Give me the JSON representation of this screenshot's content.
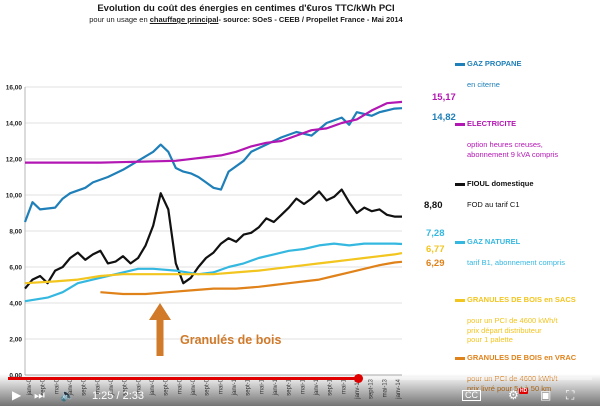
{
  "chart_data": {
    "type": "line",
    "title": "Evolution du coût des énergies en centimes d'€uros TTC/kWh PCI",
    "subtitle_parts": [
      "pour un usage en ",
      "chauffage principal",
      "- source: SOeS - CEEB / Propellet France - Mai 2014"
    ],
    "ylim": [
      0,
      16
    ],
    "y_ticks": [
      "0,00",
      "2,00",
      "4,00",
      "6,00",
      "8,00",
      "10,00",
      "12,00",
      "14,00",
      "16,00"
    ],
    "x_tick_labels": [
      "janv-0",
      "sept-0",
      "mai-0",
      "janv-0",
      "sept-0",
      "mai-0",
      "janv-0",
      "sept-0",
      "mai-0",
      "janv-0",
      "sept-0",
      "mai-0",
      "janv-0",
      "sept-0",
      "mai-0",
      "janv-1",
      "sept-1",
      "mai-1",
      "janv-1",
      "sept-1",
      "mai-1",
      "janv-1",
      "sept-1",
      "mai-1",
      "janv-13",
      "sept-13",
      "mai-13",
      "janv-14"
    ],
    "x_range": [
      0,
      100
    ],
    "grid": true,
    "series": [
      {
        "name": "GAZ PROPANE",
        "color": "#1f7fb8",
        "x": [
          0,
          2,
          4,
          8,
          10,
          12,
          16,
          18,
          22,
          26,
          30,
          34,
          36,
          38,
          40,
          42,
          44,
          46,
          48,
          50,
          52,
          54,
          58,
          60,
          64,
          68,
          72,
          76,
          80,
          84,
          86,
          88,
          90,
          92,
          94,
          96,
          98,
          100
        ],
        "y": [
          8.5,
          9.6,
          9.2,
          9.3,
          9.8,
          10.1,
          10.4,
          10.7,
          11.0,
          11.4,
          11.9,
          12.4,
          12.8,
          12.4,
          11.5,
          11.3,
          11.2,
          11.0,
          10.7,
          10.4,
          10.3,
          11.3,
          11.9,
          12.4,
          12.8,
          13.2,
          13.5,
          13.3,
          14.0,
          14.3,
          13.9,
          14.6,
          14.5,
          14.4,
          14.6,
          14.7,
          14.8,
          14.82
        ]
      },
      {
        "name": "ELECTRICITE",
        "color": "#b317b3",
        "x": [
          0,
          20,
          40,
          52,
          56,
          60,
          64,
          68,
          72,
          76,
          80,
          84,
          88,
          92,
          96,
          100
        ],
        "y": [
          11.8,
          11.8,
          11.9,
          12.2,
          12.4,
          12.7,
          12.9,
          13.0,
          13.3,
          13.6,
          13.7,
          14.0,
          14.2,
          14.7,
          15.1,
          15.17
        ]
      },
      {
        "name": "FIOUL domestique",
        "color": "#111111",
        "x": [
          0,
          2,
          4,
          6,
          8,
          10,
          12,
          14,
          16,
          18,
          20,
          22,
          24,
          26,
          28,
          30,
          32,
          34,
          36,
          38,
          40,
          42,
          44,
          46,
          48,
          50,
          52,
          54,
          56,
          58,
          60,
          62,
          64,
          66,
          68,
          70,
          72,
          74,
          76,
          78,
          80,
          82,
          84,
          86,
          88,
          90,
          92,
          94,
          96,
          98,
          100
        ],
        "y": [
          4.8,
          5.3,
          5.5,
          5.1,
          5.8,
          6.0,
          6.5,
          6.8,
          6.4,
          6.7,
          6.9,
          6.2,
          6.3,
          6.6,
          6.2,
          6.5,
          7.2,
          8.3,
          10.1,
          9.2,
          6.2,
          5.1,
          5.4,
          6.0,
          6.5,
          6.8,
          7.3,
          7.6,
          7.4,
          7.8,
          7.9,
          8.2,
          8.7,
          8.5,
          8.9,
          9.3,
          9.8,
          9.5,
          9.8,
          10.2,
          9.7,
          9.9,
          10.3,
          9.6,
          9.0,
          9.3,
          9.1,
          9.2,
          8.9,
          8.8,
          8.8
        ]
      },
      {
        "name": "GAZ NATUREL",
        "color": "#35b8e0",
        "x": [
          0,
          6,
          10,
          14,
          18,
          22,
          26,
          30,
          34,
          40,
          46,
          50,
          54,
          58,
          62,
          66,
          70,
          74,
          78,
          82,
          86,
          90,
          94,
          98,
          100
        ],
        "y": [
          4.1,
          4.3,
          4.6,
          5.1,
          5.3,
          5.5,
          5.7,
          5.9,
          5.9,
          5.8,
          5.6,
          5.7,
          6.0,
          6.2,
          6.5,
          6.7,
          6.9,
          7.0,
          7.2,
          7.3,
          7.2,
          7.3,
          7.3,
          7.3,
          7.28
        ]
      },
      {
        "name": "GRANULES DE BOIS en SACS",
        "color": "#f2c51f",
        "x": [
          0,
          8,
          14,
          20,
          26,
          32,
          38,
          44,
          50,
          56,
          62,
          66,
          70,
          74,
          78,
          82,
          86,
          90,
          94,
          98,
          100
        ],
        "y": [
          5.1,
          5.2,
          5.3,
          5.5,
          5.6,
          5.6,
          5.6,
          5.6,
          5.6,
          5.7,
          5.8,
          5.9,
          6.0,
          6.1,
          6.2,
          6.3,
          6.4,
          6.5,
          6.6,
          6.7,
          6.77
        ]
      },
      {
        "name": "GRANULES DE BOIS en VRAC",
        "color": "#e0821a",
        "x": [
          20,
          26,
          32,
          38,
          44,
          50,
          56,
          62,
          66,
          70,
          74,
          78,
          82,
          86,
          90,
          94,
          98,
          100
        ],
        "y": [
          4.6,
          4.5,
          4.5,
          4.6,
          4.7,
          4.8,
          4.8,
          4.9,
          5.0,
          5.1,
          5.2,
          5.3,
          5.5,
          5.7,
          5.9,
          6.1,
          6.25,
          6.29
        ]
      }
    ],
    "end_values": [
      {
        "label": "15,17",
        "color": "#b317b3"
      },
      {
        "label": "14,82",
        "color": "#1f7fb8"
      },
      {
        "label": "8,80",
        "color": "#111111"
      },
      {
        "label": "7,28",
        "color": "#35b8e0"
      },
      {
        "label": "6,77",
        "color": "#f2c51f"
      },
      {
        "label": "6,29",
        "color": "#e0821a"
      }
    ],
    "legend": [
      {
        "name": "GAZ PROPANE",
        "color": "#1f7fb8",
        "sub": [
          "en citerne"
        ]
      },
      {
        "name": "ELECTRICITE",
        "color": "#b317b3",
        "sub": [
          "option heures creuses,",
          "abonnement 9 kVA compris"
        ]
      },
      {
        "name": "FIOUL domestique",
        "color": "#111111",
        "sub": [
          "FOD au tarif C1"
        ]
      },
      {
        "name": "GAZ NATUREL",
        "color": "#35b8e0",
        "sub": [
          "tarif B1, abonnement compris"
        ]
      },
      {
        "name": "GRANULES DE BOIS en SACS",
        "color": "#f2c51f",
        "sub": [
          "pour un PCI de 4600 kWh/t",
          "prix départ distributeur",
          "pour 1 palette"
        ]
      },
      {
        "name": "GRANULES DE BOIS en VRAC",
        "color": "#e0821a",
        "sub": [
          "pour un PCI de 4600 kWh/t",
          "prix livré pour 5 t à 50 km"
        ]
      }
    ],
    "annotation": {
      "text": "Granulés de bois",
      "color": "#d07a2a"
    }
  },
  "player": {
    "time": "1:25 / 2:33",
    "progress": 0.6
  }
}
